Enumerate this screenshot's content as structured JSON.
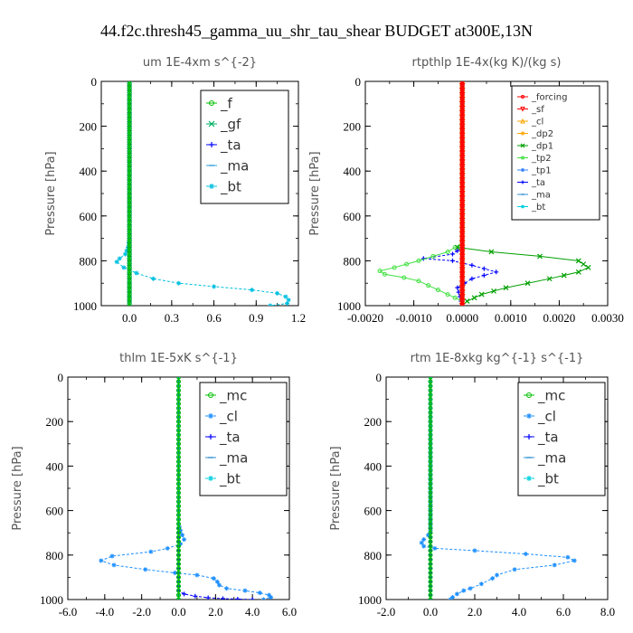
{
  "figure_title": "44.f2c.thresh45_gamma_uu_shr_tau_shear  BUDGET at300E,13N",
  "chart_data": [
    {
      "type": "line",
      "title": "um   1E-4xm s^{-2}",
      "ylabel": "Pressure [hPa]",
      "xlim": [
        -0.2,
        1.2
      ],
      "ylim": [
        1000,
        0
      ],
      "x_ticks": [
        "0.0",
        "0.3",
        "0.6",
        "0.9",
        "1.2"
      ],
      "y_ticks": [
        "0",
        "200",
        "400",
        "600",
        "800",
        "1000"
      ],
      "legend_position": "top-right",
      "series": [
        {
          "name": "_f",
          "color": "#00c000",
          "marker": "circle",
          "x": [
            0,
            0
          ],
          "y": [
            0,
            1000
          ]
        },
        {
          "name": "_gf",
          "color": "#00b060",
          "marker": "x",
          "x": [
            0,
            0
          ],
          "y": [
            0,
            1000
          ]
        },
        {
          "name": "_ta",
          "color": "#0000ff",
          "marker": "plus",
          "x": [
            0,
            0
          ],
          "y": [
            0,
            1000
          ]
        },
        {
          "name": "_ma",
          "color": "#30a0e0",
          "marker": "dash",
          "x": [
            0,
            0
          ],
          "y": [
            0,
            1000
          ]
        },
        {
          "name": "_bt",
          "color": "#00c0e0",
          "marker": "star",
          "x": [
            0,
            0,
            0,
            0,
            -0.01,
            -0.03,
            -0.07,
            -0.09,
            -0.04,
            0.05,
            0.17,
            0.35,
            0.6,
            0.87,
            1.05,
            1.11,
            1.13,
            1.12,
            1.0
          ],
          "y": [
            0,
            200,
            500,
            700,
            740,
            770,
            790,
            805,
            830,
            855,
            880,
            900,
            915,
            930,
            945,
            960,
            975,
            990,
            1000
          ]
        }
      ]
    },
    {
      "type": "line",
      "title": "rtpthlp   1E-4x(kg K)/(kg s)",
      "ylabel": "Pressure [hPa]",
      "xlim": [
        -0.002,
        0.003
      ],
      "ylim": [
        1000,
        0
      ],
      "x_ticks": [
        "-0.0020",
        "-0.0010",
        "0.0000",
        "0.0010",
        "0.0020",
        "0.0030"
      ],
      "y_ticks": [
        "0",
        "200",
        "400",
        "600",
        "800",
        "1000"
      ],
      "legend_position": "top-right",
      "series": [
        {
          "name": "_forcing",
          "color": "#ff0000",
          "marker": "circle",
          "x": [
            0,
            0
          ],
          "y": [
            0,
            1000
          ]
        },
        {
          "name": "_sf",
          "color": "#ff0000",
          "marker": "triangle-down",
          "x": [
            0,
            0
          ],
          "y": [
            0,
            1000
          ]
        },
        {
          "name": "_cl",
          "color": "#ffa500",
          "marker": "triangle",
          "x": [
            0,
            0
          ],
          "y": [
            0,
            1000
          ]
        },
        {
          "name": "_dp2",
          "color": "#ffa500",
          "marker": "circle",
          "x": [
            0,
            0
          ],
          "y": [
            0,
            1000
          ]
        },
        {
          "name": "_dp1",
          "color": "#00a000",
          "marker": "x",
          "x": [
            0,
            0,
            -0.0001,
            0.0006,
            0.0016,
            0.0024,
            0.0026,
            0.0024,
            0.0018,
            0.0009,
            0.0004,
            0.0001,
            0
          ],
          "y": [
            0,
            720,
            740,
            760,
            780,
            800,
            830,
            850,
            880,
            920,
            950,
            980,
            1000
          ]
        },
        {
          "name": "_tp2",
          "color": "#40e040",
          "marker": "circle",
          "x": [
            0,
            0,
            -0.0003,
            -0.0009,
            -0.0014,
            -0.0017,
            -0.0016,
            -0.0012,
            -0.0009,
            -0.0007,
            -0.0005,
            -0.0003,
            0
          ],
          "y": [
            0,
            720,
            760,
            800,
            830,
            845,
            860,
            875,
            890,
            910,
            930,
            950,
            980
          ]
        },
        {
          "name": "_tp1",
          "color": "#3080ff",
          "marker": "star",
          "x": [
            0,
            0
          ],
          "y": [
            0,
            1000
          ]
        },
        {
          "name": "_ta",
          "color": "#0000ff",
          "marker": "plus",
          "x": [
            0,
            0,
            -0.0002,
            -0.0008,
            -0.0002,
            0.0002,
            0.0007,
            0.0002,
            -0.0001,
            0
          ],
          "y": [
            0,
            740,
            770,
            790,
            800,
            820,
            850,
            880,
            920,
            1000
          ]
        },
        {
          "name": "_ma",
          "color": "#3090d0",
          "marker": "dash",
          "x": [
            0,
            0
          ],
          "y": [
            0,
            1000
          ]
        },
        {
          "name": "_bt",
          "color": "#00d0e0",
          "marker": "star",
          "x": [
            0,
            0
          ],
          "y": [
            0,
            1000
          ]
        }
      ]
    },
    {
      "type": "line",
      "title": "thlm   1E-5xK s^{-1}",
      "ylabel": "Pressure [hPa]",
      "xlim": [
        -6.0,
        6.0
      ],
      "ylim": [
        1000,
        0
      ],
      "x_ticks": [
        "-6.0",
        "-4.0",
        "-2.0",
        "0.0",
        "2.0",
        "4.0",
        "6.0"
      ],
      "y_ticks": [
        "0",
        "200",
        "400",
        "600",
        "800",
        "1000"
      ],
      "legend_position": "top-right",
      "series": [
        {
          "name": "_mc",
          "color": "#00c000",
          "marker": "circle",
          "x": [
            0,
            0
          ],
          "y": [
            0,
            1000
          ]
        },
        {
          "name": "_cl",
          "color": "#1e90ff",
          "marker": "star",
          "x": [
            0,
            0,
            0.1,
            0.3,
            0.1,
            -0.6,
            -1.5,
            -3.6,
            -4.2,
            -3.5,
            -1.8,
            -0.2,
            1.0,
            1.9,
            2.1,
            2.2,
            2.6,
            3.6,
            4.4,
            4.9,
            5.0,
            4.6
          ],
          "y": [
            0,
            660,
            690,
            730,
            750,
            770,
            785,
            805,
            825,
            845,
            865,
            880,
            890,
            905,
            920,
            935,
            950,
            960,
            970,
            980,
            990,
            1000
          ]
        },
        {
          "name": "_ta",
          "color": "#0000ff",
          "marker": "plus",
          "x": [
            0,
            0,
            0.3,
            0.9,
            1.6,
            2.4,
            3.2,
            4.0
          ],
          "y": [
            0,
            960,
            975,
            985,
            992,
            996,
            998,
            1000
          ]
        },
        {
          "name": "_ma",
          "color": "#3090d0",
          "marker": "dash",
          "x": [
            0,
            0
          ],
          "y": [
            0,
            1000
          ]
        },
        {
          "name": "_bt",
          "color": "#00d0e0",
          "marker": "star",
          "x": [
            0,
            0
          ],
          "y": [
            0,
            1000
          ]
        }
      ]
    },
    {
      "type": "line",
      "title": "rtm   1E-8xkg kg^{-1} s^{-1}",
      "ylabel": "Pressure [hPa]",
      "xlim": [
        -2.0,
        8.0
      ],
      "ylim": [
        1000,
        0
      ],
      "x_ticks": [
        "-2.0",
        "0.0",
        "2.0",
        "4.0",
        "6.0",
        "8.0"
      ],
      "y_ticks": [
        "0",
        "200",
        "400",
        "600",
        "800",
        "1000"
      ],
      "legend_position": "top-right",
      "series": [
        {
          "name": "_mc",
          "color": "#00c000",
          "marker": "circle",
          "x": [
            0,
            0
          ],
          "y": [
            0,
            1000
          ]
        },
        {
          "name": "_cl",
          "color": "#1e90ff",
          "marker": "star",
          "x": [
            0,
            0,
            -0.1,
            -0.3,
            -0.4,
            -0.3,
            0.2,
            2.0,
            4.3,
            6.2,
            6.5,
            5.6,
            3.8,
            3.0,
            2.8,
            2.3,
            1.8,
            1.5,
            1.2,
            1.0,
            0.9
          ],
          "y": [
            0,
            690,
            710,
            730,
            745,
            760,
            770,
            780,
            795,
            810,
            825,
            845,
            865,
            890,
            905,
            930,
            950,
            960,
            975,
            990,
            1000
          ]
        },
        {
          "name": "_ta",
          "color": "#0000ff",
          "marker": "plus",
          "x": [
            0,
            0
          ],
          "y": [
            0,
            1000
          ]
        },
        {
          "name": "_ma",
          "color": "#3090d0",
          "marker": "dash",
          "x": [
            0,
            0
          ],
          "y": [
            0,
            1000
          ]
        },
        {
          "name": "_bt",
          "color": "#00d0e0",
          "marker": "star",
          "x": [
            0,
            0
          ],
          "y": [
            0,
            1000
          ]
        }
      ]
    }
  ]
}
